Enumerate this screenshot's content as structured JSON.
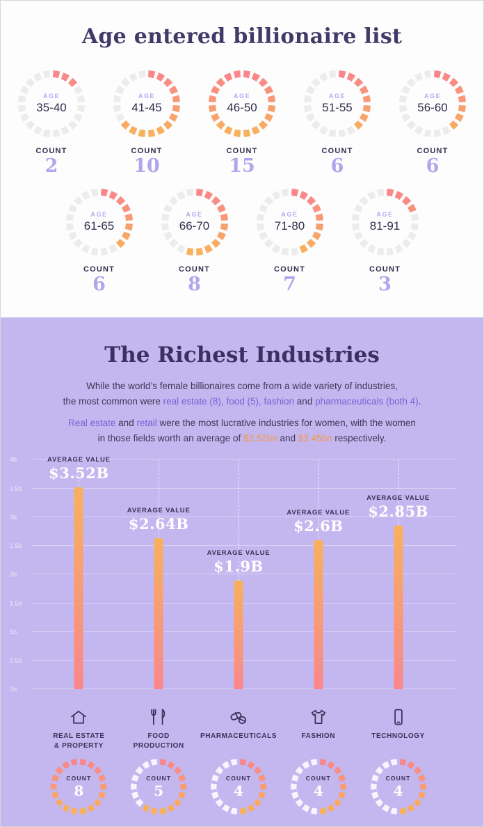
{
  "age_section": {
    "title": "Age entered billionaire list",
    "age_label": "AGE",
    "count_label": "COUNT",
    "max_count": 15,
    "donuts": [
      {
        "range": "35-40",
        "count": 2
      },
      {
        "range": "41-45",
        "count": 10
      },
      {
        "range": "46-50",
        "count": 15
      },
      {
        "range": "51-55",
        "count": 6
      },
      {
        "range": "56-60",
        "count": 6
      },
      {
        "range": "61-65",
        "count": 6
      },
      {
        "range": "66-70",
        "count": 8
      },
      {
        "range": "71-80",
        "count": 7
      },
      {
        "range": "81-91",
        "count": 3
      }
    ]
  },
  "industries_section": {
    "title": "The Richest Industries",
    "para1": {
      "line1": "While the world’s female billionaires come from a wide variety of industries,",
      "l2a": "the most common were ",
      "h_realestate": "real estate (8),",
      "l2b": " ",
      "h_food": "food (5),",
      "l2c": " ",
      "h_fashion": "fashion",
      "l2d": " and ",
      "h_pharma": "pharmaceuticals (both 4)",
      "l2e": "."
    },
    "para2": {
      "h_realestate": "Real estate",
      "l1a": " and ",
      "h_retail": "retail",
      "l1b": " were the most lucrative industries for women, with the women",
      "l2a": "in those fields worth an average of ",
      "h_v1": "$3.52bn",
      "l2b": " and ",
      "h_v2": "$3.45bn",
      "l2c": " respectively."
    },
    "avg_value_label": "AVERAGE VALUE",
    "count_label": "COUNT",
    "count_max": 8,
    "y_max": 4,
    "y_ticks": [
      "0b",
      "0.5b",
      "1b",
      "1.5b",
      "2b",
      "2.5b",
      "3b",
      "3.5b",
      "4b"
    ],
    "industries": [
      {
        "label_lines": [
          "REAL ESTATE",
          "& PROPERTY"
        ],
        "icon": "home-icon",
        "value": 3.52,
        "value_label": "$3.52B",
        "count": 8
      },
      {
        "label_lines": [
          "FOOD",
          "PRODUCTION"
        ],
        "icon": "food-icon",
        "value": 2.64,
        "value_label": "$2.64B",
        "count": 5
      },
      {
        "label_lines": [
          "PHARMACEUTICALS"
        ],
        "icon": "pills-icon",
        "value": 1.9,
        "value_label": "$1.9B",
        "count": 4
      },
      {
        "label_lines": [
          "FASHION"
        ],
        "icon": "tshirt-icon",
        "value": 2.6,
        "value_label": "$2.6B",
        "count": 4
      },
      {
        "label_lines": [
          "TECHNOLOGY"
        ],
        "icon": "phone-icon",
        "value": 2.85,
        "value_label": "$2.85B",
        "count": 4
      }
    ]
  },
  "chart_data": [
    {
      "type": "pie",
      "variant": "donut-gauge-set",
      "title": "Age entered billionaire list",
      "categories": [
        "35-40",
        "41-45",
        "46-50",
        "51-55",
        "56-60",
        "61-65",
        "66-70",
        "71-80",
        "81-91"
      ],
      "values": [
        2,
        10,
        15,
        6,
        6,
        6,
        8,
        7,
        3
      ],
      "max": 15,
      "fill_colors": [
        "#f9868a",
        "#f8b15c"
      ],
      "legend_position": "none"
    },
    {
      "type": "bar",
      "title": "The Richest Industries",
      "categories": [
        "REAL ESTATE & PROPERTY",
        "FOOD PRODUCTION",
        "PHARMACEUTICALS",
        "FASHION",
        "TECHNOLOGY"
      ],
      "values": [
        3.52,
        2.64,
        1.9,
        2.6,
        2.85
      ],
      "value_labels": [
        "$3.52B",
        "$2.64B",
        "$1.9B",
        "$2.6B",
        "$2.85B"
      ],
      "counts": [
        8,
        5,
        4,
        4,
        4
      ],
      "counts_max": 8,
      "xlabel": "",
      "ylabel": "",
      "ylim": [
        0,
        4
      ],
      "yticks": [
        "0b",
        "0.5b",
        "1b",
        "1.5b",
        "2b",
        "2.5b",
        "3b",
        "3.5b",
        "4b"
      ],
      "grid": true,
      "bar_gradient": [
        "#f9878b",
        "#f8b15c"
      ],
      "legend_position": "none"
    }
  ]
}
